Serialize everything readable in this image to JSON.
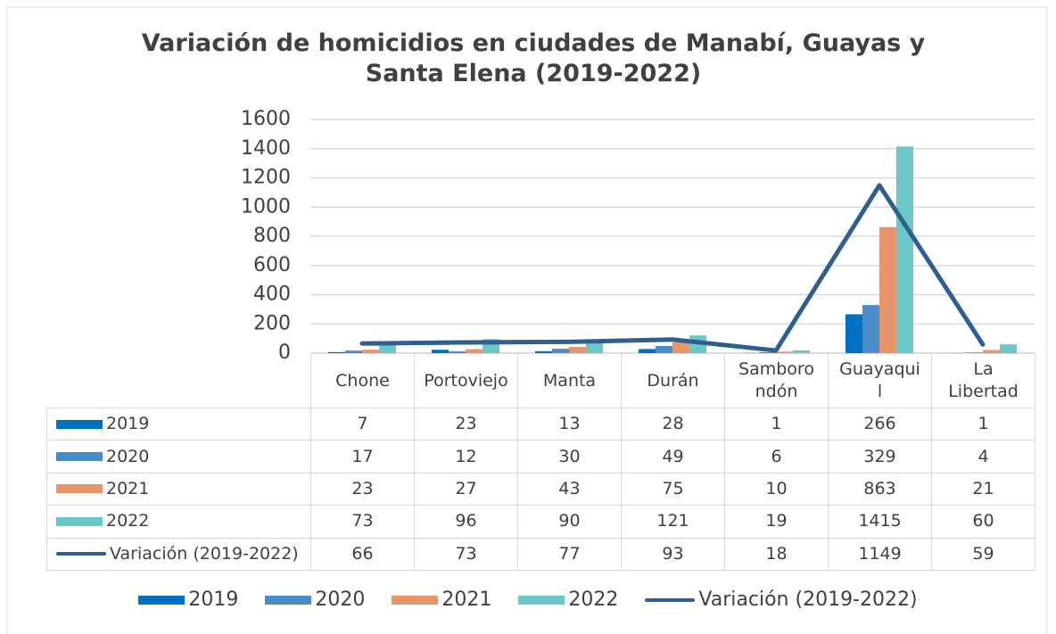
{
  "chart_data": {
    "type": "bar",
    "title": "Variación de homicidios en ciudades de Manabí, Guayas y Santa Elena (2019-2022)",
    "categories": [
      "Chone",
      "Portoviejo",
      "Manta",
      "Durán",
      "Samborondón",
      "Guayaquil",
      "La Libertad"
    ],
    "series": [
      {
        "name": "2019",
        "color": "#0070c0",
        "values": [
          7,
          23,
          13,
          28,
          1,
          266,
          1
        ]
      },
      {
        "name": "2020",
        "color": "#4a8cc7",
        "values": [
          17,
          12,
          30,
          49,
          6,
          329,
          4
        ]
      },
      {
        "name": "2021",
        "color": "#e8956b",
        "values": [
          23,
          27,
          43,
          75,
          10,
          863,
          21
        ]
      },
      {
        "name": "2022",
        "color": "#6cc8c8",
        "values": [
          73,
          96,
          90,
          121,
          19,
          1415,
          60
        ]
      },
      {
        "name": "Variación (2019-2022)",
        "type": "line",
        "color": "#2e5f8e",
        "values": [
          66,
          73,
          77,
          93,
          18,
          1149,
          59
        ]
      }
    ],
    "ylim": [
      0,
      1600
    ],
    "yticks": [
      0,
      200,
      400,
      600,
      800,
      1000,
      1200,
      1400,
      1600
    ],
    "grid": true,
    "legend": "bottom",
    "data_table": true
  }
}
